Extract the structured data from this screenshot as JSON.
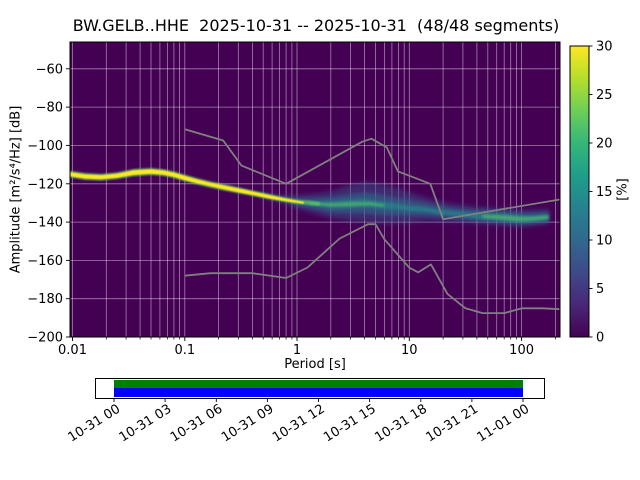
{
  "chart_data": {
    "type": "heatmap",
    "title": "BW.GELB..HHE  2025-10-31 -- 2025-10-31  (48/48 segments)",
    "xlabel": "Period [s]",
    "ylabel": "Amplitude [m²/s⁴/Hz] [dB]",
    "xscale": "log",
    "xlim": [
      0.0095,
      220
    ],
    "ylim": [
      -200,
      -46
    ],
    "grid": true,
    "background_color": "#440154",
    "xticks": [
      0.01,
      0.1,
      1,
      10,
      100
    ],
    "xtick_labels": [
      "0.01",
      "0.1",
      "1",
      "10",
      "100"
    ],
    "yticks": [
      -60,
      -80,
      -100,
      -120,
      -140,
      -160,
      -180,
      -200
    ],
    "ytick_labels": [
      "−60",
      "−80",
      "−100",
      "−120",
      "−140",
      "−160",
      "−180",
      "−200"
    ],
    "colorbar": {
      "label": "[%]",
      "min": 0,
      "max": 30,
      "ticks": [
        0,
        5,
        10,
        15,
        20,
        25,
        30
      ],
      "colormap": "viridis",
      "stops": [
        "#440154",
        "#482878",
        "#3e4a89",
        "#31688e",
        "#26828e",
        "#1f9e89",
        "#35b779",
        "#6ece58",
        "#b5de2b",
        "#fde725"
      ]
    },
    "psd_mode_curve": {
      "units": "period_s, amplitude_db",
      "points": [
        [
          0.01,
          -115
        ],
        [
          0.013,
          -116.2
        ],
        [
          0.018,
          -116.6
        ],
        [
          0.025,
          -115.8
        ],
        [
          0.035,
          -114.2
        ],
        [
          0.05,
          -113.6
        ],
        [
          0.065,
          -114.2
        ],
        [
          0.08,
          -115.3
        ],
        [
          0.1,
          -117
        ],
        [
          0.13,
          -118.8
        ],
        [
          0.17,
          -120.4
        ],
        [
          0.22,
          -121.8
        ],
        [
          0.3,
          -123.4
        ],
        [
          0.4,
          -124.9
        ],
        [
          0.55,
          -126.6
        ],
        [
          0.7,
          -127.8
        ],
        [
          1,
          -129.4
        ],
        [
          1.5,
          -130.5
        ],
        [
          2,
          -131
        ],
        [
          3,
          -130.5
        ],
        [
          5,
          -130.6
        ],
        [
          8,
          -132
        ],
        [
          10,
          -132.5
        ],
        [
          15,
          -133.5
        ],
        [
          20,
          -134.7
        ],
        [
          30,
          -135.7
        ],
        [
          50,
          -137
        ],
        [
          70,
          -137.6
        ],
        [
          100,
          -138.2
        ],
        [
          150,
          -137.7
        ],
        [
          180,
          -137.3
        ]
      ]
    },
    "noise_models": {
      "color": "#808080",
      "low": [
        [
          0.1,
          -168
        ],
        [
          0.17,
          -166.7
        ],
        [
          0.4,
          -166.7
        ],
        [
          0.8,
          -169.2
        ],
        [
          1.24,
          -163.7
        ],
        [
          2.4,
          -148.6
        ],
        [
          4.3,
          -141.1
        ],
        [
          5,
          -141.1
        ],
        [
          6,
          -149
        ],
        [
          10,
          -163.8
        ],
        [
          12,
          -166.2
        ],
        [
          15.6,
          -162.1
        ],
        [
          21.9,
          -177.5
        ],
        [
          31.6,
          -185
        ],
        [
          45,
          -187.5
        ],
        [
          70,
          -187.5
        ],
        [
          101,
          -185
        ],
        [
          154,
          -185
        ],
        [
          220,
          -185.5
        ]
      ],
      "high": [
        [
          0.1,
          -91.5
        ],
        [
          0.22,
          -97.4
        ],
        [
          0.32,
          -110.5
        ],
        [
          0.8,
          -120
        ],
        [
          3.8,
          -98.1
        ],
        [
          4.6,
          -96.5
        ],
        [
          6.3,
          -101
        ],
        [
          7.9,
          -113.5
        ],
        [
          15.4,
          -120
        ],
        [
          20,
          -138.5
        ],
        [
          220,
          -128.2
        ]
      ]
    },
    "density_layers": [
      {
        "name": "outer-blue",
        "color": "#3b528b",
        "opacity": 0.5,
        "blur": 2.5,
        "points": [
          [
            0.45,
            -125.5,
            1.2
          ],
          [
            0.6,
            -127,
            1.6
          ],
          [
            0.75,
            -128,
            2.2
          ],
          [
            1,
            -129.5,
            3.5
          ],
          [
            1.5,
            -130.5,
            5.5
          ],
          [
            2,
            -131,
            7
          ],
          [
            3,
            -130,
            9.5
          ],
          [
            4,
            -129.5,
            10.5
          ],
          [
            5,
            -130,
            10.5
          ],
          [
            6.5,
            -131,
            10
          ],
          [
            8,
            -131.5,
            9
          ],
          [
            10,
            -132.5,
            8
          ],
          [
            13,
            -133,
            6.5
          ],
          [
            17,
            -134,
            5.5
          ],
          [
            22,
            -135,
            5
          ],
          [
            30,
            -135.5,
            4.5
          ],
          [
            40,
            -136.5,
            4.5
          ],
          [
            55,
            -137,
            4.5
          ],
          [
            70,
            -137.5,
            4.5
          ],
          [
            90,
            -138,
            4.5
          ],
          [
            110,
            -138,
            4.5
          ],
          [
            140,
            -137.5,
            4
          ],
          [
            175,
            -137,
            4
          ]
        ]
      },
      {
        "name": "mid-blue",
        "color": "#2c728e",
        "opacity": 0.55,
        "blur": 1.8,
        "points": [
          [
            0.85,
            -128.5,
            1
          ],
          [
            1,
            -129.5,
            2
          ],
          [
            1.5,
            -130.5,
            3
          ],
          [
            2,
            -131,
            4
          ],
          [
            3,
            -130.5,
            5
          ],
          [
            4,
            -130,
            5.5
          ],
          [
            5,
            -130.5,
            5.5
          ],
          [
            6.5,
            -131.5,
            5
          ],
          [
            8,
            -132,
            4.5
          ],
          [
            10,
            -132.5,
            4
          ],
          [
            13,
            -133,
            3.5
          ],
          [
            17,
            -134,
            3
          ],
          [
            22,
            -135,
            2.8
          ],
          [
            30,
            -136,
            2.8
          ],
          [
            40,
            -136.5,
            3
          ],
          [
            55,
            -137,
            3.2
          ],
          [
            70,
            -137.5,
            3.2
          ],
          [
            90,
            -138,
            3.2
          ],
          [
            110,
            -138.2,
            3
          ],
          [
            140,
            -137.8,
            2.8
          ],
          [
            175,
            -137.2,
            2.8
          ]
        ]
      },
      {
        "name": "teal-core",
        "color": "#21918c",
        "opacity": 0.6,
        "blur": 1.2,
        "points": [
          [
            1.2,
            -130,
            0.8
          ],
          [
            2,
            -131,
            1.8
          ],
          [
            3,
            -130.5,
            2.2
          ],
          [
            4,
            -130,
            2.2
          ],
          [
            5,
            -130.8,
            2
          ],
          [
            6.5,
            -131.5,
            1.8
          ],
          [
            8,
            -132,
            1.6
          ],
          [
            10,
            -132.8,
            1.4
          ],
          [
            14,
            -133.5,
            1.2
          ],
          [
            20,
            -135,
            1.2
          ],
          [
            30,
            -136,
            1.3
          ],
          [
            40,
            -136.8,
            1.6
          ],
          [
            55,
            -137.2,
            1.8
          ],
          [
            70,
            -137.6,
            1.9
          ],
          [
            90,
            -138.2,
            1.9
          ],
          [
            110,
            -138.4,
            1.8
          ],
          [
            140,
            -138,
            1.6
          ],
          [
            175,
            -137.4,
            1.6
          ]
        ]
      },
      {
        "name": "green-core-microseism",
        "color": "#5ec962",
        "opacity": 0.55,
        "blur": 1,
        "points": [
          [
            1.3,
            -130.2,
            0.5
          ],
          [
            2,
            -131,
            0.9
          ],
          [
            3,
            -130.6,
            1
          ],
          [
            4.5,
            -130.4,
            0.9
          ],
          [
            6,
            -131.3,
            0.7
          ]
        ]
      },
      {
        "name": "green-core-long-period",
        "color": "#5ec962",
        "opacity": 0.55,
        "blur": 1,
        "points": [
          [
            45,
            -137,
            0.9
          ],
          [
            60,
            -137.4,
            1.1
          ],
          [
            80,
            -138,
            1.2
          ],
          [
            100,
            -138.4,
            1.2
          ],
          [
            125,
            -138.2,
            1
          ],
          [
            155,
            -137.7,
            0.9
          ],
          [
            175,
            -137.4,
            0.8
          ]
        ]
      },
      {
        "name": "line-fringe-green",
        "color": "#5ec962",
        "opacity": 0.7,
        "blur": 0.8,
        "points": [
          [
            0.0095,
            -115,
            1.9
          ],
          [
            0.013,
            -116.2,
            1.9
          ],
          [
            0.018,
            -116.6,
            1.9
          ],
          [
            0.025,
            -115.8,
            1.9
          ],
          [
            0.035,
            -114.2,
            2
          ],
          [
            0.05,
            -113.6,
            2
          ],
          [
            0.065,
            -114.2,
            1.9
          ],
          [
            0.08,
            -115.3,
            1.9
          ],
          [
            0.1,
            -117,
            1.9
          ],
          [
            0.13,
            -118.8,
            1.8
          ],
          [
            0.17,
            -120.4,
            1.8
          ],
          [
            0.22,
            -121.8,
            1.8
          ],
          [
            0.3,
            -123.4,
            1.7
          ],
          [
            0.4,
            -124.9,
            1.6
          ],
          [
            0.55,
            -126.6,
            1.5
          ],
          [
            0.7,
            -127.8,
            1.4
          ],
          [
            0.85,
            -128.7,
            1.3
          ],
          [
            1,
            -129.4,
            1.2
          ],
          [
            1.3,
            -130,
            1.1
          ],
          [
            1.6,
            -130.5,
            1
          ]
        ]
      },
      {
        "name": "mode-line-yellow",
        "color": "#fde725",
        "opacity": 1,
        "blur": 0.6,
        "points": [
          [
            0.0095,
            -115,
            1.1
          ],
          [
            0.013,
            -116.2,
            1.1
          ],
          [
            0.018,
            -116.6,
            1.1
          ],
          [
            0.025,
            -115.8,
            1.1
          ],
          [
            0.035,
            -114.2,
            1.2
          ],
          [
            0.05,
            -113.6,
            1.2
          ],
          [
            0.065,
            -114.2,
            1.1
          ],
          [
            0.08,
            -115.3,
            1.1
          ],
          [
            0.1,
            -117,
            1.1
          ],
          [
            0.13,
            -118.8,
            1
          ],
          [
            0.17,
            -120.4,
            1
          ],
          [
            0.22,
            -121.8,
            1
          ],
          [
            0.3,
            -123.4,
            1
          ],
          [
            0.4,
            -124.9,
            0.9
          ],
          [
            0.55,
            -126.6,
            0.9
          ],
          [
            0.7,
            -127.8,
            0.8
          ],
          [
            0.85,
            -128.7,
            0.7
          ],
          [
            1,
            -129.4,
            0.6
          ],
          [
            1.15,
            -129.9,
            0.5
          ]
        ]
      }
    ],
    "coverage": {
      "tick_labels": [
        "10-31 00",
        "10-31 03",
        "10-31 06",
        "10-31 09",
        "10-31 12",
        "10-31 15",
        "10-31 18",
        "10-31 21",
        "11-01 00"
      ],
      "colors": {
        "processed": "#008000",
        "data": "#0000ff"
      }
    }
  }
}
